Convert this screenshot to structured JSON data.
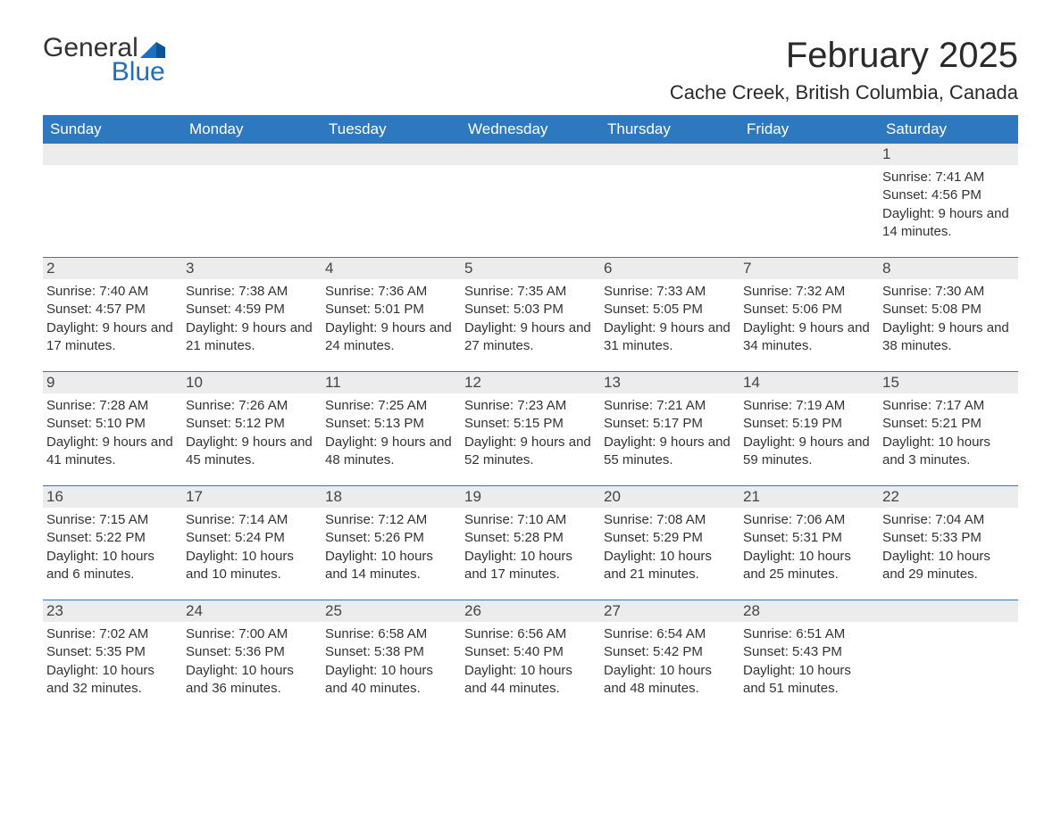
{
  "logo": {
    "line1_left": "General",
    "line2": "Blue"
  },
  "title": "February 2025",
  "location": "Cache Creek, British Columbia, Canada",
  "colors": {
    "header_bg": "#2e78c0",
    "header_text": "#ffffff",
    "daynum_bg": "#ececec",
    "cell_text": "#333333",
    "rule": "#2e78c0",
    "logo_blue": "#1e6fbf",
    "logo_dark": "#333333"
  },
  "day_headers": [
    "Sunday",
    "Monday",
    "Tuesday",
    "Wednesday",
    "Thursday",
    "Friday",
    "Saturday"
  ],
  "weeks": [
    [
      null,
      null,
      null,
      null,
      null,
      null,
      {
        "n": "1",
        "sunrise": "Sunrise: 7:41 AM",
        "sunset": "Sunset: 4:56 PM",
        "daylight": "Daylight: 9 hours and 14 minutes."
      }
    ],
    [
      {
        "n": "2",
        "sunrise": "Sunrise: 7:40 AM",
        "sunset": "Sunset: 4:57 PM",
        "daylight": "Daylight: 9 hours and 17 minutes."
      },
      {
        "n": "3",
        "sunrise": "Sunrise: 7:38 AM",
        "sunset": "Sunset: 4:59 PM",
        "daylight": "Daylight: 9 hours and 21 minutes."
      },
      {
        "n": "4",
        "sunrise": "Sunrise: 7:36 AM",
        "sunset": "Sunset: 5:01 PM",
        "daylight": "Daylight: 9 hours and 24 minutes."
      },
      {
        "n": "5",
        "sunrise": "Sunrise: 7:35 AM",
        "sunset": "Sunset: 5:03 PM",
        "daylight": "Daylight: 9 hours and 27 minutes."
      },
      {
        "n": "6",
        "sunrise": "Sunrise: 7:33 AM",
        "sunset": "Sunset: 5:05 PM",
        "daylight": "Daylight: 9 hours and 31 minutes."
      },
      {
        "n": "7",
        "sunrise": "Sunrise: 7:32 AM",
        "sunset": "Sunset: 5:06 PM",
        "daylight": "Daylight: 9 hours and 34 minutes."
      },
      {
        "n": "8",
        "sunrise": "Sunrise: 7:30 AM",
        "sunset": "Sunset: 5:08 PM",
        "daylight": "Daylight: 9 hours and 38 minutes."
      }
    ],
    [
      {
        "n": "9",
        "sunrise": "Sunrise: 7:28 AM",
        "sunset": "Sunset: 5:10 PM",
        "daylight": "Daylight: 9 hours and 41 minutes."
      },
      {
        "n": "10",
        "sunrise": "Sunrise: 7:26 AM",
        "sunset": "Sunset: 5:12 PM",
        "daylight": "Daylight: 9 hours and 45 minutes."
      },
      {
        "n": "11",
        "sunrise": "Sunrise: 7:25 AM",
        "sunset": "Sunset: 5:13 PM",
        "daylight": "Daylight: 9 hours and 48 minutes."
      },
      {
        "n": "12",
        "sunrise": "Sunrise: 7:23 AM",
        "sunset": "Sunset: 5:15 PM",
        "daylight": "Daylight: 9 hours and 52 minutes."
      },
      {
        "n": "13",
        "sunrise": "Sunrise: 7:21 AM",
        "sunset": "Sunset: 5:17 PM",
        "daylight": "Daylight: 9 hours and 55 minutes."
      },
      {
        "n": "14",
        "sunrise": "Sunrise: 7:19 AM",
        "sunset": "Sunset: 5:19 PM",
        "daylight": "Daylight: 9 hours and 59 minutes."
      },
      {
        "n": "15",
        "sunrise": "Sunrise: 7:17 AM",
        "sunset": "Sunset: 5:21 PM",
        "daylight": "Daylight: 10 hours and 3 minutes."
      }
    ],
    [
      {
        "n": "16",
        "sunrise": "Sunrise: 7:15 AM",
        "sunset": "Sunset: 5:22 PM",
        "daylight": "Daylight: 10 hours and 6 minutes."
      },
      {
        "n": "17",
        "sunrise": "Sunrise: 7:14 AM",
        "sunset": "Sunset: 5:24 PM",
        "daylight": "Daylight: 10 hours and 10 minutes."
      },
      {
        "n": "18",
        "sunrise": "Sunrise: 7:12 AM",
        "sunset": "Sunset: 5:26 PM",
        "daylight": "Daylight: 10 hours and 14 minutes."
      },
      {
        "n": "19",
        "sunrise": "Sunrise: 7:10 AM",
        "sunset": "Sunset: 5:28 PM",
        "daylight": "Daylight: 10 hours and 17 minutes."
      },
      {
        "n": "20",
        "sunrise": "Sunrise: 7:08 AM",
        "sunset": "Sunset: 5:29 PM",
        "daylight": "Daylight: 10 hours and 21 minutes."
      },
      {
        "n": "21",
        "sunrise": "Sunrise: 7:06 AM",
        "sunset": "Sunset: 5:31 PM",
        "daylight": "Daylight: 10 hours and 25 minutes."
      },
      {
        "n": "22",
        "sunrise": "Sunrise: 7:04 AM",
        "sunset": "Sunset: 5:33 PM",
        "daylight": "Daylight: 10 hours and 29 minutes."
      }
    ],
    [
      {
        "n": "23",
        "sunrise": "Sunrise: 7:02 AM",
        "sunset": "Sunset: 5:35 PM",
        "daylight": "Daylight: 10 hours and 32 minutes."
      },
      {
        "n": "24",
        "sunrise": "Sunrise: 7:00 AM",
        "sunset": "Sunset: 5:36 PM",
        "daylight": "Daylight: 10 hours and 36 minutes."
      },
      {
        "n": "25",
        "sunrise": "Sunrise: 6:58 AM",
        "sunset": "Sunset: 5:38 PM",
        "daylight": "Daylight: 10 hours and 40 minutes."
      },
      {
        "n": "26",
        "sunrise": "Sunrise: 6:56 AM",
        "sunset": "Sunset: 5:40 PM",
        "daylight": "Daylight: 10 hours and 44 minutes."
      },
      {
        "n": "27",
        "sunrise": "Sunrise: 6:54 AM",
        "sunset": "Sunset: 5:42 PM",
        "daylight": "Daylight: 10 hours and 48 minutes."
      },
      {
        "n": "28",
        "sunrise": "Sunrise: 6:51 AM",
        "sunset": "Sunset: 5:43 PM",
        "daylight": "Daylight: 10 hours and 51 minutes."
      },
      null
    ]
  ]
}
